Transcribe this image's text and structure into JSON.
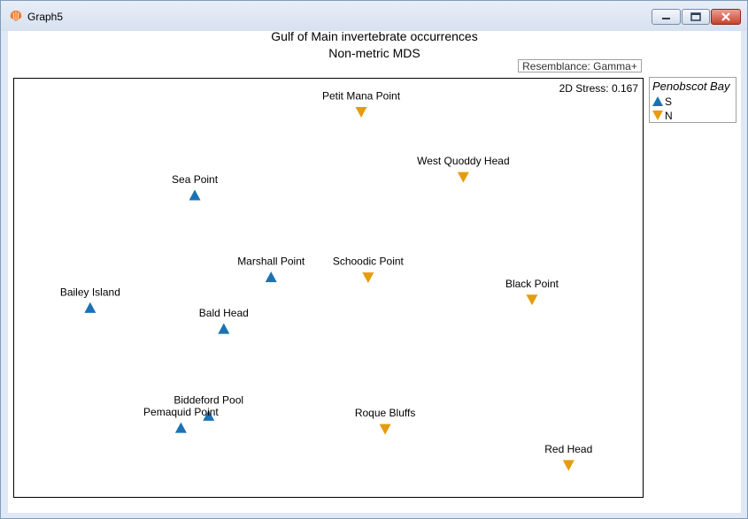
{
  "window": {
    "title": "Graph5"
  },
  "chart_data": {
    "type": "scatter",
    "title": "Gulf of Main invertebrate occurrences",
    "subtitle": "Non-metric MDS",
    "resemblance": "Resemblance: Gamma+",
    "stress": "2D Stress: 0.167",
    "legend": {
      "title": "Penobscot Bay",
      "placement": "right",
      "entries": [
        {
          "label": "S",
          "marker": "triangle-up",
          "color": "#1a72b4"
        },
        {
          "label": "N",
          "marker": "triangle-down",
          "color": "#e59c0e"
        }
      ]
    },
    "grid": false,
    "xlim": [
      0,
      1
    ],
    "ylim": [
      0,
      1
    ],
    "points": [
      {
        "label": "Petit Mana Point",
        "group": "N",
        "x": 0.552,
        "y": 0.919
      },
      {
        "label": "West Quoddy Head",
        "group": "N",
        "x": 0.714,
        "y": 0.764
      },
      {
        "label": "Sea Point",
        "group": "S",
        "x": 0.288,
        "y": 0.72
      },
      {
        "label": "Marshall Point",
        "group": "S",
        "x": 0.409,
        "y": 0.525
      },
      {
        "label": "Schoodic Point",
        "group": "N",
        "x": 0.563,
        "y": 0.525
      },
      {
        "label": "Black Point",
        "group": "N",
        "x": 0.823,
        "y": 0.472
      },
      {
        "label": "Bailey Island",
        "group": "S",
        "x": 0.122,
        "y": 0.452
      },
      {
        "label": "Bald Head",
        "group": "S",
        "x": 0.334,
        "y": 0.402
      },
      {
        "label": "Biddeford Pool",
        "group": "S",
        "x": 0.31,
        "y": 0.195
      },
      {
        "label": "Pemaquid Point",
        "group": "S",
        "x": 0.266,
        "y": 0.166
      },
      {
        "label": "Roque Bluffs",
        "group": "N",
        "x": 0.59,
        "y": 0.164
      },
      {
        "label": "Red Head",
        "group": "N",
        "x": 0.881,
        "y": 0.078
      }
    ]
  }
}
